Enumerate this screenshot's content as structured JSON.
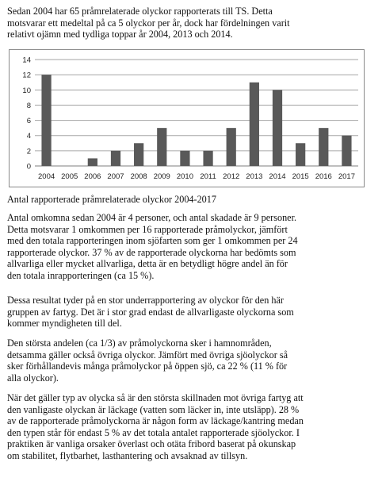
{
  "intro": {
    "lines": [
      "Sedan 2004 har 65 pråmrelaterade olyckor rapporterats till TS. Detta",
      "motsvarar ett medeltal på ca 5 olyckor per år, dock har fördelningen varit",
      "relativt ojämn med tydliga toppar år 2004, 2013 och 2014."
    ]
  },
  "chart_data": {
    "type": "bar",
    "categories": [
      "2004",
      "2005",
      "2006",
      "2007",
      "2008",
      "2009",
      "2010",
      "2011",
      "2012",
      "2013",
      "2014",
      "2015",
      "2016",
      "2017"
    ],
    "values": [
      12,
      0,
      1,
      2,
      3,
      5,
      2,
      2,
      5,
      11,
      10,
      3,
      5,
      4
    ],
    "ylim": [
      0,
      14
    ],
    "yticks": [
      "0",
      "2",
      "4",
      "6",
      "8",
      "10",
      "12",
      "14"
    ],
    "grid": true,
    "bar_color": "#595959",
    "grid_color": "#a6a6a6"
  },
  "caption": "Antal rapporterade pråmrelaterade olyckor 2004-2017",
  "paragraphs": [
    {
      "lines": [
        "Antal omkomna sedan 2004 är 4 personer, och antal skadade är 9 personer.",
        "Detta motsvarar 1 omkommen per 16 rapporterade pråmolyckor, jämfört",
        "med den totala rapporteringen inom sjöfarten som ger 1 omkommen per 24",
        "rapporterade olyckor. 37 % av de rapporterade olyckorna har bedömts som",
        "allvarliga eller mycket allvarliga, detta är en betydligt högre andel än för",
        "den totala inrapporteringen (ca 15 %)."
      ]
    },
    {
      "lines": [
        "Dessa resultat tyder på en stor underrapportering av olyckor för den här",
        "gruppen av fartyg. Det är i stor grad endast de allvarligaste olyckorna som",
        "kommer myndigheten till del."
      ]
    },
    {
      "lines": [
        "Den största andelen (ca 1/3) av pråmolyckorna sker i hamnområden,",
        "detsamma gäller också övriga olyckor. Jämfört med övriga sjöolyckor så",
        "sker förhållandevis många pråmolyckor på öppen sjö, ca 22 % (11 % för",
        "alla olyckor)."
      ]
    },
    {
      "lines": [
        "När det gäller typ av olycka så är den största skillnaden mot övriga fartyg att",
        "den vanligaste olyckan är läckage (vatten som läcker in, inte utsläpp). 28 %",
        "av de rapporterade pråmolyckorna är någon form av läckage/kantring medan",
        "den typen står för endast 5 % av det totala antalet rapporterade sjöolyckor. I",
        "praktiken är vanliga orsaker överlast och otäta fribord baserat på okunskap",
        "om stabilitet, flytbarhet, lasthantering och avsaknad av tillsyn."
      ]
    }
  ]
}
